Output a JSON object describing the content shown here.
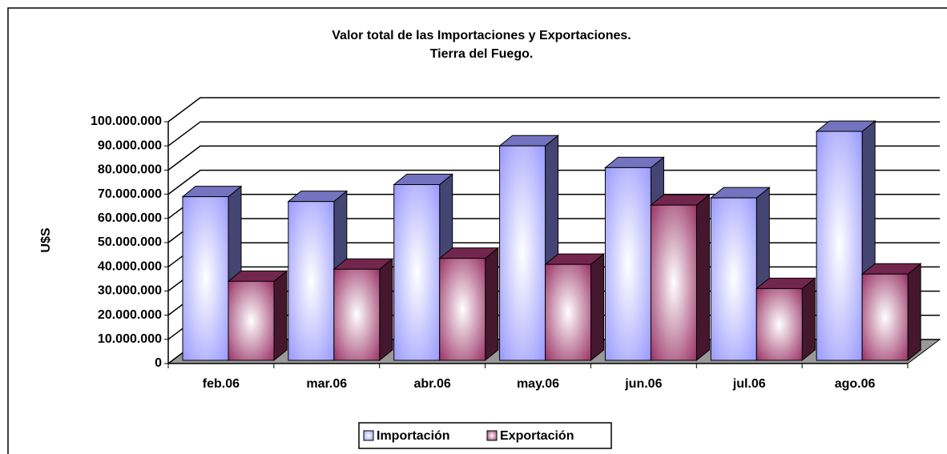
{
  "chart_data": {
    "type": "bar3d",
    "title": "Valor total de las Importaciones y Exportaciones.",
    "subtitle": "Tierra del Fuego.",
    "y_label": "U$S",
    "categories": [
      "feb.06",
      "mar.06",
      "abr.06",
      "may.06",
      "jun.06",
      "jul.06",
      "ago.06"
    ],
    "series": [
      {
        "name": "Importación",
        "color": "#9999ff",
        "values": [
          69000000,
          67000000,
          74000000,
          90000000,
          81000000,
          68500000,
          96000000
        ]
      },
      {
        "name": "Exportación",
        "color": "#993366",
        "values": [
          34000000,
          39000000,
          43500000,
          41000000,
          65500000,
          31000000,
          37000000
        ]
      }
    ],
    "ylim": [
      0,
      100000000
    ],
    "yticks": [
      0,
      {
        "value": 10000000,
        "label": "10.000.000"
      },
      {
        "value": 20000000,
        "label": "20.000.000"
      },
      {
        "value": 30000000,
        "label": "30.000.000"
      },
      {
        "value": 40000000,
        "label": "40.000.000"
      },
      {
        "value": 50000000,
        "label": "50.000.000"
      },
      {
        "value": 60000000,
        "label": "60.000.000"
      },
      {
        "value": 70000000,
        "label": "70.000.000"
      },
      {
        "value": 80000000,
        "label": "80.000.000"
      },
      {
        "value": 90000000,
        "label": "90.000.000"
      },
      {
        "value": 100000000,
        "label": "100.000.000"
      }
    ],
    "grid": true,
    "legend": "bottom"
  }
}
